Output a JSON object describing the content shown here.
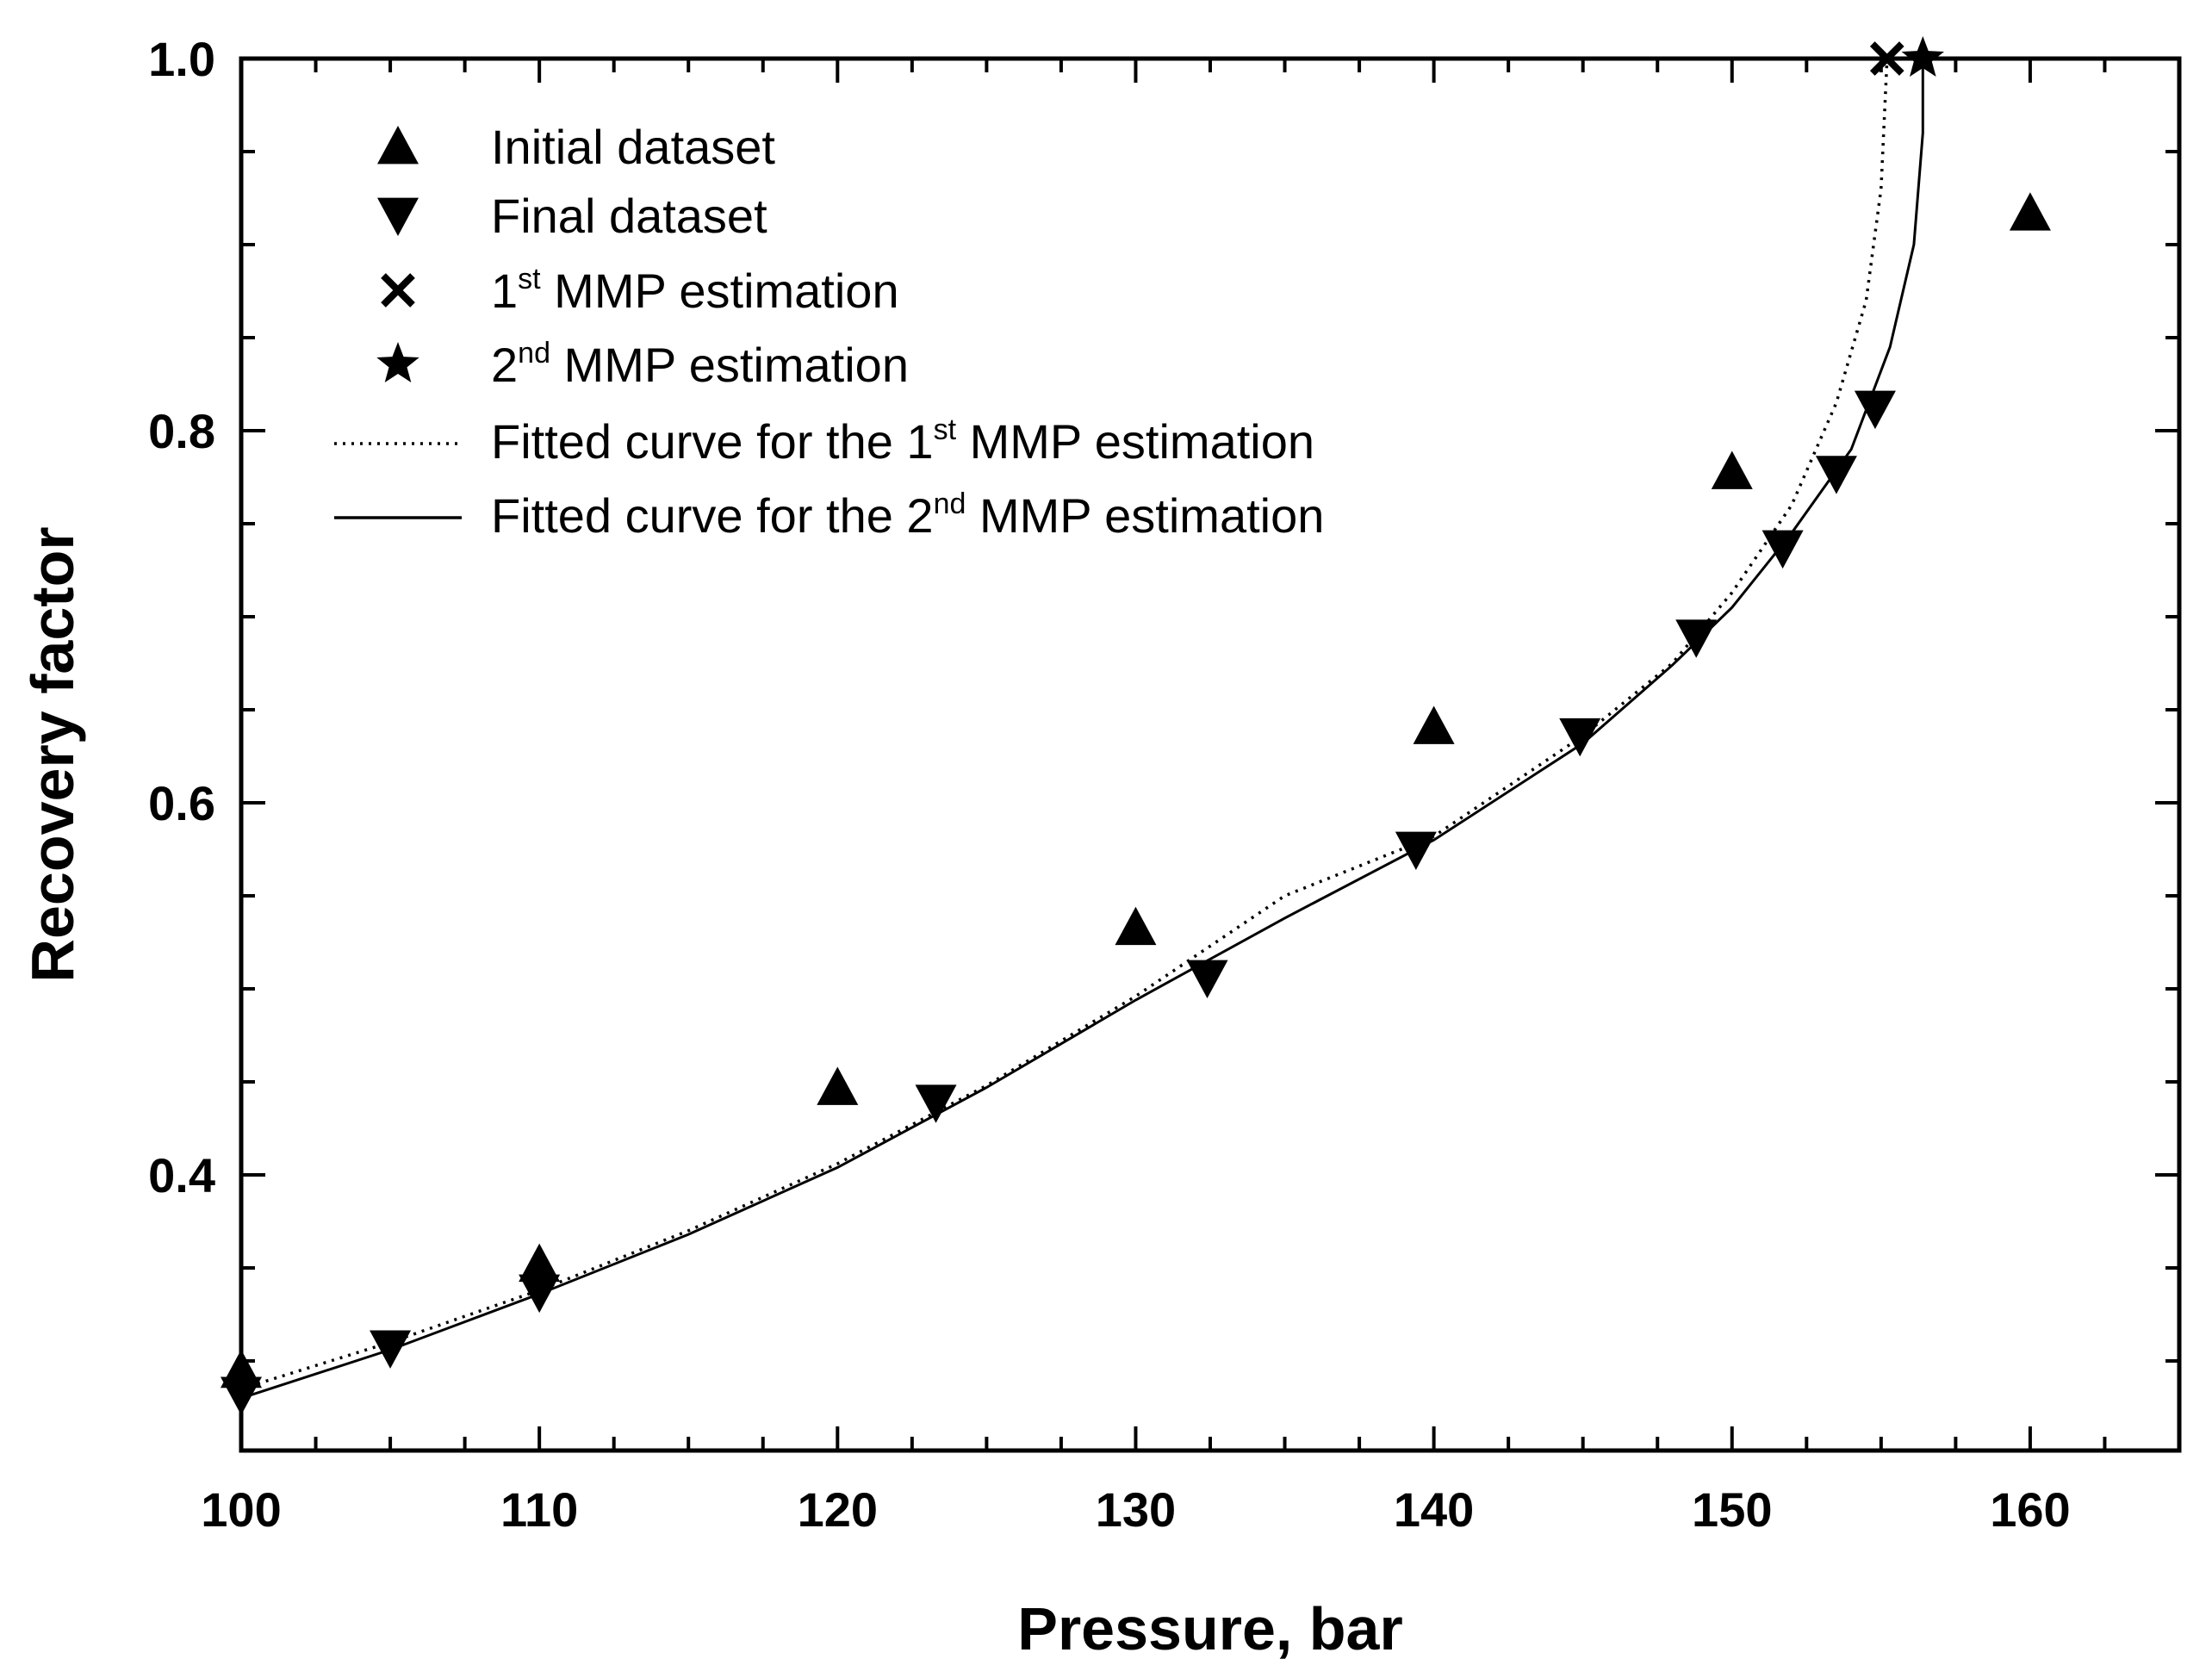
{
  "chart_data": {
    "type": "scatter",
    "xlabel": "Pressure, bar",
    "ylabel": "Recovery factor",
    "xlim": [
      100,
      165
    ],
    "ylim": [
      0.27,
      1.0
    ],
    "x_ticks": [
      "100",
      "110",
      "120",
      "130",
      "140",
      "150",
      "160"
    ],
    "y_ticks": [
      "0.4",
      "0.6",
      "0.8",
      "1.0"
    ],
    "grid": false,
    "legend_position": "top-left inside",
    "series": [
      {
        "name": "Initial dataset",
        "marker": "triangle-up",
        "points": [
          [
            100,
            0.295
          ],
          [
            110,
            0.352
          ],
          [
            120,
            0.447
          ],
          [
            130,
            0.533
          ],
          [
            140,
            0.641
          ],
          [
            150,
            0.778
          ],
          [
            160,
            0.917
          ]
        ]
      },
      {
        "name": "Final dataset",
        "marker": "triangle-down",
        "points": [
          [
            100,
            0.282
          ],
          [
            105,
            0.307
          ],
          [
            110,
            0.337
          ],
          [
            123.3,
            0.439
          ],
          [
            132.4,
            0.506
          ],
          [
            139.4,
            0.575
          ],
          [
            144.9,
            0.636
          ],
          [
            148.8,
            0.689
          ],
          [
            151.7,
            0.737
          ],
          [
            153.5,
            0.777
          ],
          [
            154.8,
            0.812
          ]
        ]
      },
      {
        "name": "1st MMP estimation",
        "marker": "cross",
        "points": [
          [
            155.2,
            1.0
          ]
        ]
      },
      {
        "name": "2nd MMP estimation",
        "marker": "star",
        "points": [
          [
            156.4,
            1.0
          ]
        ]
      },
      {
        "name": "Fitted curve for the 1st MMP estimation",
        "line": "dotted",
        "points": [
          [
            100,
            0.285
          ],
          [
            105,
            0.31
          ],
          [
            110,
            0.338
          ],
          [
            115,
            0.37
          ],
          [
            120,
            0.406
          ],
          [
            125,
            0.448
          ],
          [
            130,
            0.496
          ],
          [
            135,
            0.55
          ],
          [
            140,
            0.582
          ],
          [
            145,
            0.636
          ],
          [
            148,
            0.675
          ],
          [
            150,
            0.713
          ],
          [
            152,
            0.76
          ],
          [
            153.5,
            0.815
          ],
          [
            154.5,
            0.87
          ],
          [
            155,
            0.93
          ],
          [
            155.2,
            1.0
          ]
        ]
      },
      {
        "name": "Fitted curve for the 2nd MMP estimation",
        "line": "solid",
        "points": [
          [
            100,
            0.28
          ],
          [
            105,
            0.306
          ],
          [
            110,
            0.336
          ],
          [
            115,
            0.368
          ],
          [
            120,
            0.404
          ],
          [
            125,
            0.447
          ],
          [
            130,
            0.494
          ],
          [
            135,
            0.538
          ],
          [
            140,
            0.58
          ],
          [
            145,
            0.632
          ],
          [
            148,
            0.674
          ],
          [
            150,
            0.705
          ],
          [
            152,
            0.745
          ],
          [
            154,
            0.79
          ],
          [
            155.3,
            0.845
          ],
          [
            156.1,
            0.9
          ],
          [
            156.4,
            0.96
          ],
          [
            156.4,
            1.0
          ]
        ]
      }
    ],
    "legend": [
      {
        "marker": "triangle-up",
        "base": "Initial dataset",
        "sup": "",
        "tail": ""
      },
      {
        "marker": "triangle-down",
        "base": "Final dataset",
        "sup": "",
        "tail": ""
      },
      {
        "marker": "cross",
        "base": "1",
        "sup": "st",
        "tail": " MMP estimation"
      },
      {
        "marker": "star",
        "base": "2",
        "sup": "nd",
        "tail": " MMP estimation"
      },
      {
        "marker": "dotted",
        "base": "Fitted curve for the 1",
        "sup": "st",
        "tail": " MMP estimation"
      },
      {
        "marker": "solid",
        "base": "Fitted curve for the 2",
        "sup": "nd",
        "tail": " MMP estimation"
      }
    ]
  }
}
